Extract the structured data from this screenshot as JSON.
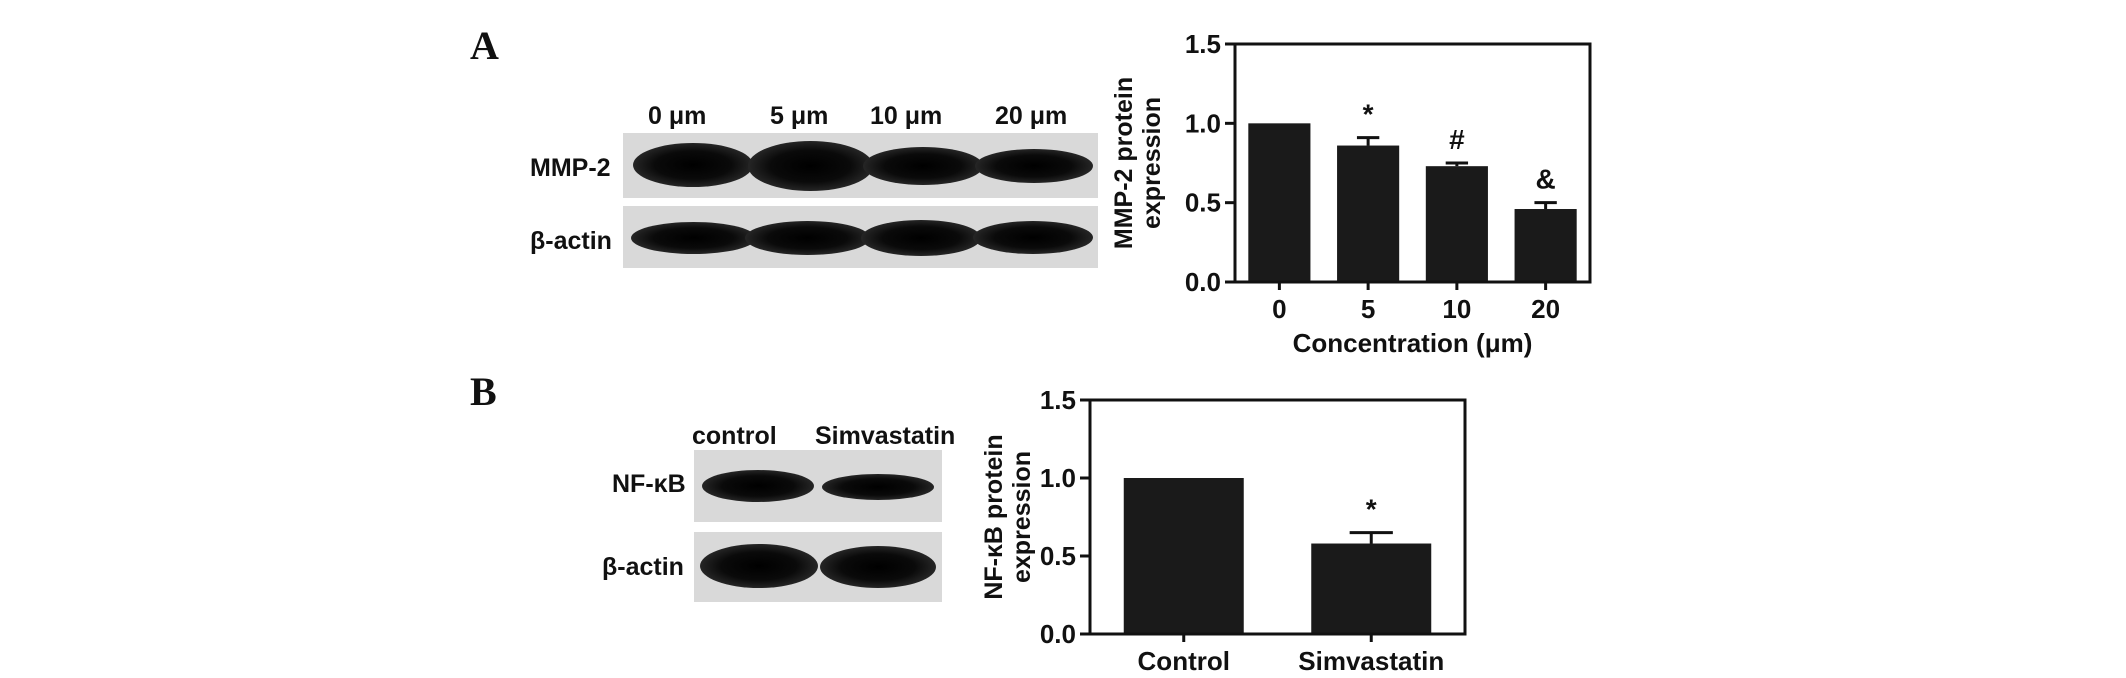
{
  "panels": {
    "a": {
      "letter": "A",
      "blot": {
        "lanes": [
          "0 μm",
          "5 μm",
          "10 μm",
          "20 μm"
        ],
        "rows": [
          "MMP-2",
          "β-actin"
        ]
      }
    },
    "b": {
      "letter": "B",
      "blot": {
        "lanes": [
          "control",
          "Simvastatin"
        ],
        "rows": [
          "NF-κB",
          "β-actin"
        ]
      }
    }
  },
  "chart_data": [
    {
      "type": "bar",
      "categories": [
        "0",
        "5",
        "10",
        "20"
      ],
      "values": [
        1.0,
        0.86,
        0.73,
        0.46
      ],
      "errors": [
        0.0,
        0.05,
        0.02,
        0.04
      ],
      "annotations": [
        "",
        "*",
        "#",
        "&"
      ],
      "ylabel_lines": [
        "MMP-2 protein",
        "expression"
      ],
      "xlabel": "Concentration (μm)",
      "ylim": [
        0,
        1.5
      ],
      "yticks": [
        "0.0",
        "0.5",
        "1.0",
        "1.5"
      ],
      "grid": false,
      "bar_color": "#1a1a1a"
    },
    {
      "type": "bar",
      "categories": [
        "Control",
        "Simvastatin"
      ],
      "values": [
        1.0,
        0.58
      ],
      "errors": [
        0.0,
        0.07
      ],
      "annotations": [
        "",
        "*"
      ],
      "ylabel_lines": [
        "NF-κB protein",
        "expression"
      ],
      "xlabel": "",
      "ylim": [
        0,
        1.5
      ],
      "yticks": [
        "0.0",
        "0.5",
        "1.0",
        "1.5"
      ],
      "grid": false,
      "bar_color": "#1a1a1a"
    }
  ]
}
